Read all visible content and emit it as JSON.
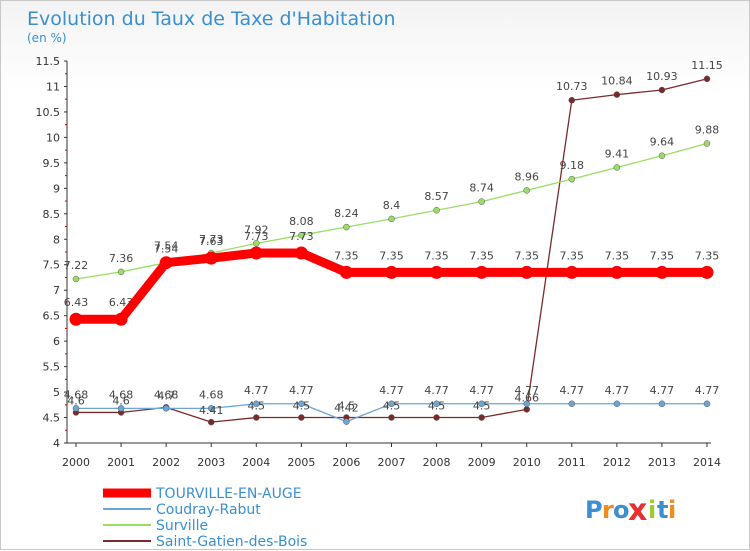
{
  "chart_data": {
    "type": "line",
    "title": "Evolution du Taux de Taxe d'Habitation",
    "subtitle": "(en %)",
    "categories": [
      "2000",
      "2001",
      "2002",
      "2003",
      "2004",
      "2005",
      "2006",
      "2007",
      "2008",
      "2009",
      "2010",
      "2011",
      "2012",
      "2013",
      "2014"
    ],
    "ylim": [
      4,
      11.5
    ],
    "yticks": [
      "4",
      "4.5",
      "5",
      "5.5",
      "6",
      "6.5",
      "7",
      "7.5",
      "8",
      "8.5",
      "9",
      "9.5",
      "10",
      "10.5",
      "11",
      "11.5"
    ],
    "grid": false,
    "legend_position": "bottom-left",
    "series": [
      {
        "name": "TOURVILLE-EN-AUGE",
        "color": "#ff0000",
        "values": [
          6.43,
          6.43,
          7.54,
          7.63,
          7.73,
          7.73,
          7.35,
          7.35,
          7.35,
          7.35,
          7.35,
          7.35,
          7.35,
          7.35,
          7.35
        ],
        "labels": [
          "6.43",
          "6.43",
          "7.54",
          "7.63",
          "7.73",
          "7.73",
          "7.35",
          "7.35",
          "7.35",
          "7.35",
          "7.35",
          "7.35",
          "7.35",
          "7.35",
          "7.35"
        ]
      },
      {
        "name": "Coudray-Rabut",
        "color": "#6aa6d6",
        "values": [
          4.68,
          4.68,
          4.68,
          4.68,
          4.77,
          4.77,
          4.42,
          4.77,
          4.77,
          4.77,
          4.77,
          4.77,
          4.77,
          4.77,
          4.77
        ],
        "labels": [
          "4.68",
          "4.68",
          "4.68",
          "4.68",
          "4.77",
          "4.77",
          "4.42",
          "4.77",
          "4.77",
          "4.77",
          "4.77",
          "4.77",
          "4.77",
          "4.77",
          "4.77"
        ]
      },
      {
        "name": "Surville",
        "color": "#99dd66",
        "values": [
          7.22,
          7.36,
          7.54,
          7.73,
          7.92,
          8.08,
          8.24,
          8.4,
          8.57,
          8.74,
          8.96,
          9.18,
          9.41,
          9.64,
          9.88
        ],
        "labels": [
          "7.22",
          "7.36",
          "7.54",
          "7.73",
          "7.92",
          "8.08",
          "8.24",
          "8.4",
          "8.57",
          "8.74",
          "8.96",
          "9.18",
          "9.41",
          "9.64",
          "9.88"
        ]
      },
      {
        "name": "Saint-Gatien-des-Bois",
        "color": "#7a2a2a",
        "values": [
          4.6,
          4.6,
          4.7,
          4.41,
          4.5,
          4.5,
          4.5,
          4.5,
          4.5,
          4.5,
          4.66,
          10.73,
          10.84,
          10.93,
          11.15
        ],
        "labels": [
          "4.6",
          "4.6",
          "4.7",
          "4.41",
          "4.5",
          "4.5",
          "4.5",
          "4.5",
          "4.5",
          "4.5",
          "4.66",
          "10.73",
          "10.84",
          "10.93",
          "11.15"
        ]
      }
    ]
  },
  "logo": {
    "text": "Proxiti"
  }
}
